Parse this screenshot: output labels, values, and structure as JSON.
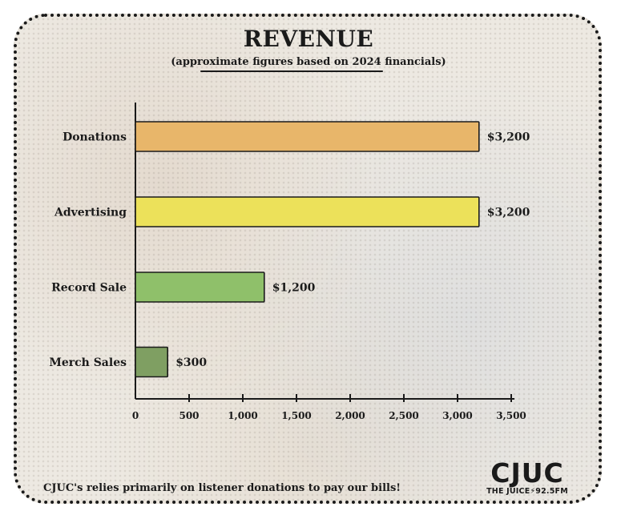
{
  "chart_data": {
    "type": "bar",
    "orientation": "horizontal",
    "title": "REVENUE",
    "subtitle": "(approximate figures based on 2024 financials)",
    "categories": [
      "Donations",
      "Advertising",
      "Record Sale",
      "Merch Sales"
    ],
    "values": [
      3200,
      3200,
      1200,
      300
    ],
    "value_labels": [
      "$3,200",
      "$3,200",
      "$1,200",
      "$300"
    ],
    "colors": [
      "#e8b66a",
      "#ece15a",
      "#8fc06a",
      "#7f9f62"
    ],
    "xlim": [
      0,
      3500
    ],
    "xticks": [
      0,
      500,
      1000,
      1500,
      2000,
      2500,
      3000,
      3500
    ],
    "xtick_labels": [
      "0",
      "500",
      "1,000",
      "1,500",
      "2,000",
      "2,500",
      "3,000",
      "3,500"
    ],
    "grid": false,
    "legend": "none"
  },
  "footer": {
    "note": "CJUC's relies primarily on listener donations to pay our bills!"
  },
  "logo": {
    "name": "CJUC",
    "tagline": "THE JUICE⚡92.5FM"
  }
}
